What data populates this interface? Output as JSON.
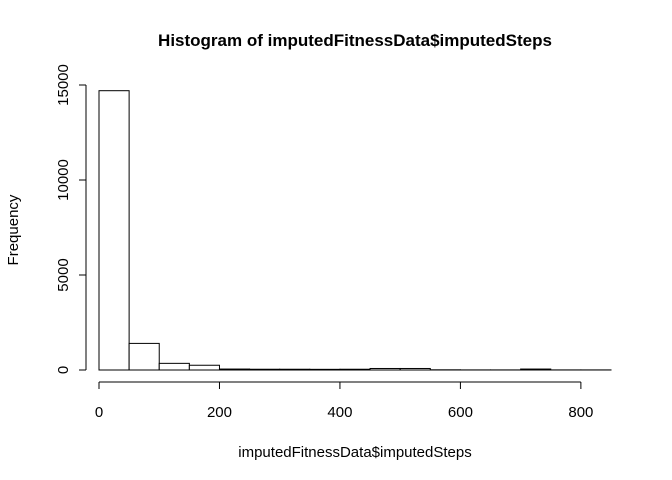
{
  "chart_data": {
    "type": "bar",
    "title": "Histogram of imputedFitnessData$imputedSteps",
    "xlabel": "imputedFitnessData$imputedSteps",
    "ylabel": "Frequency",
    "xlim": [
      0,
      850
    ],
    "ylim": [
      0,
      15500
    ],
    "x_ticks": [
      0,
      200,
      400,
      600,
      800
    ],
    "y_ticks": [
      0,
      5000,
      10000,
      15000
    ],
    "bin_width": 50,
    "bins": [
      {
        "start": 0,
        "end": 50,
        "value": 14700
      },
      {
        "start": 50,
        "end": 100,
        "value": 1400
      },
      {
        "start": 100,
        "end": 150,
        "value": 350
      },
      {
        "start": 150,
        "end": 200,
        "value": 250
      },
      {
        "start": 200,
        "end": 250,
        "value": 50
      },
      {
        "start": 250,
        "end": 300,
        "value": 40
      },
      {
        "start": 300,
        "end": 350,
        "value": 40
      },
      {
        "start": 350,
        "end": 400,
        "value": 35
      },
      {
        "start": 400,
        "end": 450,
        "value": 40
      },
      {
        "start": 450,
        "end": 500,
        "value": 80
      },
      {
        "start": 500,
        "end": 550,
        "value": 80
      },
      {
        "start": 550,
        "end": 600,
        "value": 10
      },
      {
        "start": 600,
        "end": 650,
        "value": 5
      },
      {
        "start": 650,
        "end": 700,
        "value": 5
      },
      {
        "start": 700,
        "end": 750,
        "value": 50
      },
      {
        "start": 750,
        "end": 800,
        "value": 5
      },
      {
        "start": 800,
        "end": 850,
        "value": 5
      }
    ],
    "grid": false,
    "bar_fill": "#ffffff",
    "bar_stroke": "#000000"
  }
}
